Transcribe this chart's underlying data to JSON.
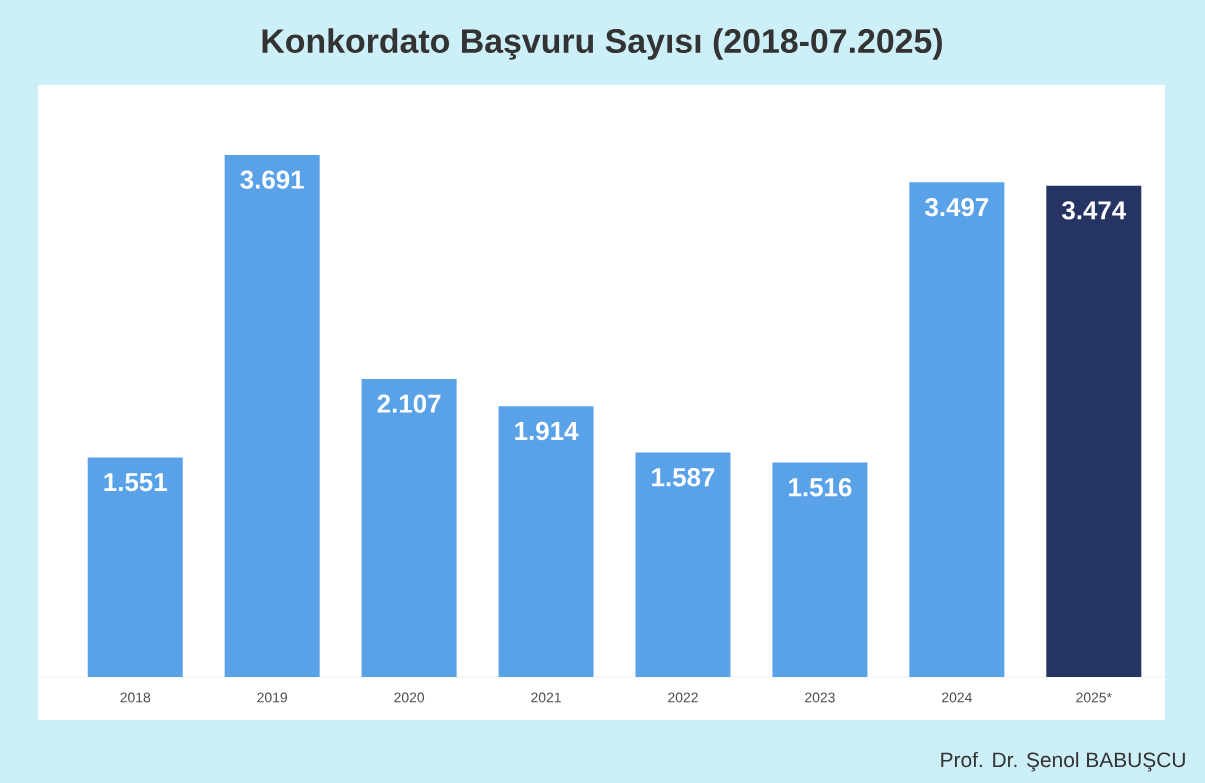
{
  "chart_data": {
    "type": "bar",
    "title": "Konkordato Başvuru Sayısı (2018-07.2025)",
    "categories": [
      "2018",
      "2019",
      "2020",
      "2021",
      "2022",
      "2023",
      "2024",
      "2025*"
    ],
    "values": [
      1551,
      3691,
      2107,
      1914,
      1587,
      1516,
      3497,
      3474
    ],
    "colors": [
      "#5aa2e8",
      "#5aa2e8",
      "#5aa2e8",
      "#5aa2e8",
      "#5aa2e8",
      "#5aa2e8",
      "#5aa2e8",
      "#263463"
    ],
    "value_labels": [
      "1.551",
      "3.691",
      "2.107",
      "1.914",
      "1.587",
      "1.516",
      "3.497",
      "3.474"
    ],
    "annotations": [
      "Prof. Dr. Şenol BABUŞCU"
    ]
  }
}
